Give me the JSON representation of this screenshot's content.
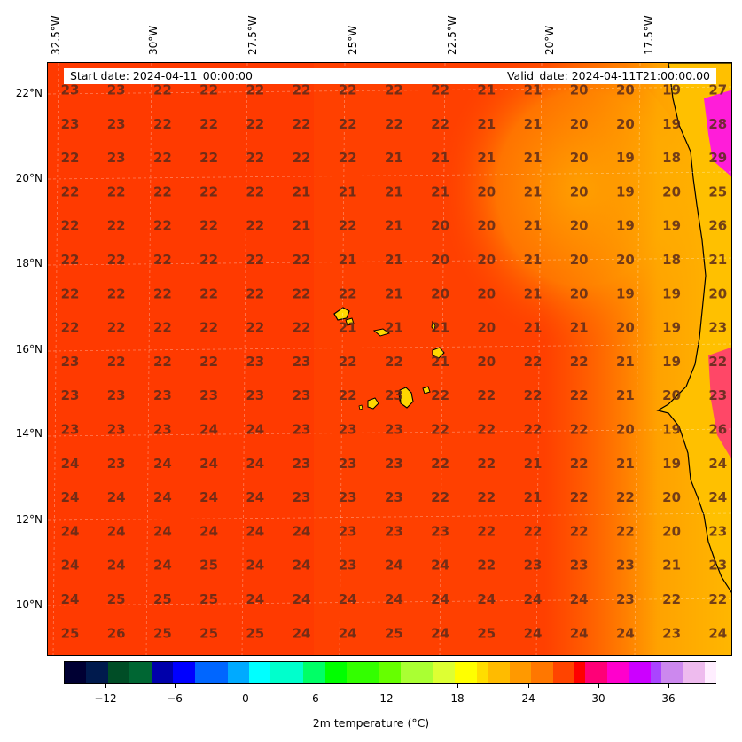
{
  "info": {
    "start_date": "Start date: 2024-04-11_00:00:00",
    "valid_date": "Valid_date: 2024-04-11T21:00:00.00"
  },
  "map": {
    "lon_labels": [
      "32.5°W",
      "30°W",
      "27.5°W",
      "25°W",
      "22.5°W",
      "20°W",
      "17.5°W"
    ],
    "lat_labels": [
      "22°N",
      "20°N",
      "18°N",
      "16°N",
      "14°N",
      "12°N",
      "10°N"
    ],
    "colors": {
      "warm_bg": "#ff4500",
      "land": "#ffcc00",
      "hot": "#ff00ff",
      "mild": "#ffa500"
    }
  },
  "grid_values": [
    [
      23,
      23,
      22,
      22,
      22,
      22,
      22,
      22,
      22,
      21,
      21,
      20,
      20,
      19,
      27
    ],
    [
      23,
      23,
      22,
      22,
      22,
      22,
      22,
      22,
      22,
      21,
      21,
      20,
      20,
      19,
      28
    ],
    [
      22,
      23,
      22,
      22,
      22,
      22,
      22,
      21,
      21,
      21,
      21,
      20,
      19,
      18,
      29
    ],
    [
      22,
      22,
      22,
      22,
      22,
      21,
      21,
      21,
      21,
      20,
      21,
      20,
      19,
      20,
      25
    ],
    [
      22,
      22,
      22,
      22,
      22,
      21,
      22,
      21,
      20,
      20,
      21,
      20,
      19,
      19,
      26
    ],
    [
      22,
      22,
      22,
      22,
      22,
      22,
      21,
      21,
      20,
      20,
      21,
      20,
      20,
      18,
      21
    ],
    [
      22,
      22,
      22,
      22,
      22,
      22,
      22,
      21,
      20,
      20,
      21,
      20,
      19,
      19,
      20
    ],
    [
      22,
      22,
      22,
      22,
      22,
      22,
      21,
      21,
      21,
      20,
      21,
      21,
      20,
      19,
      23
    ],
    [
      23,
      22,
      22,
      22,
      23,
      23,
      22,
      22,
      21,
      20,
      22,
      22,
      21,
      19,
      22
    ],
    [
      23,
      23,
      23,
      23,
      23,
      23,
      22,
      23,
      22,
      22,
      22,
      22,
      21,
      20,
      23
    ],
    [
      23,
      23,
      23,
      24,
      24,
      23,
      23,
      23,
      22,
      22,
      22,
      22,
      20,
      19,
      26
    ],
    [
      24,
      23,
      24,
      24,
      24,
      23,
      23,
      23,
      22,
      22,
      21,
      22,
      21,
      19,
      24
    ],
    [
      24,
      24,
      24,
      24,
      24,
      23,
      23,
      23,
      22,
      22,
      21,
      22,
      22,
      20,
      24
    ],
    [
      24,
      24,
      24,
      24,
      24,
      24,
      23,
      23,
      23,
      22,
      22,
      22,
      22,
      20,
      23
    ],
    [
      24,
      24,
      24,
      25,
      24,
      24,
      23,
      24,
      24,
      22,
      23,
      23,
      23,
      21,
      23
    ],
    [
      24,
      25,
      25,
      25,
      24,
      24,
      24,
      24,
      24,
      24,
      24,
      24,
      23,
      22,
      22
    ],
    [
      25,
      26,
      25,
      25,
      25,
      24,
      24,
      25,
      24,
      25,
      24,
      24,
      24,
      23,
      24
    ]
  ],
  "colorbar": {
    "ticks": [
      "−12",
      "−6",
      "0",
      "6",
      "12",
      "18",
      "24",
      "30",
      "36"
    ],
    "label": "2m temperature (°C)"
  }
}
